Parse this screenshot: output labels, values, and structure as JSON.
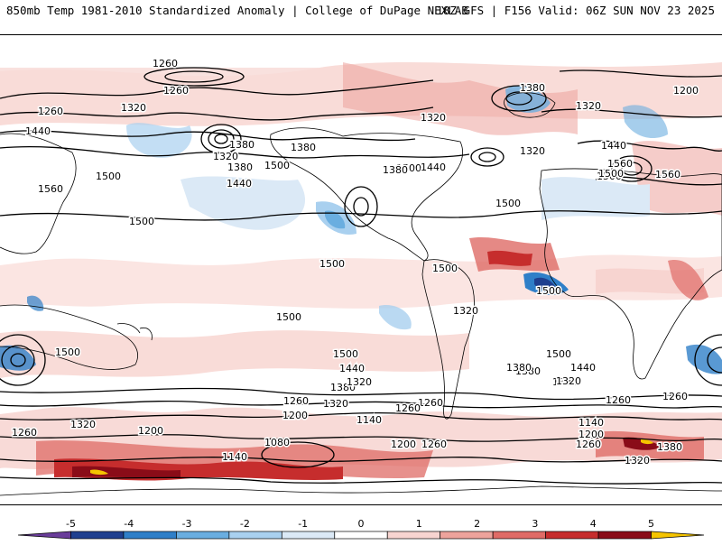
{
  "header": {
    "left": "850mb Temp 1981-2010 Standardized Anomaly | College of DuPage NEXLAB",
    "right": "18Z GFS | F156 Valid: 06Z SUN NOV 23 2025"
  },
  "contour_labels": [
    "1260",
    "1260",
    "1320",
    "1260",
    "1440",
    "1380",
    "1320",
    "1380",
    "1500",
    "1440",
    "1560",
    "1500",
    "1380",
    "1500",
    "1440",
    "1380",
    "1320",
    "1320",
    "1200",
    "1320",
    "1380",
    "1440",
    "1560",
    "1500",
    "1560",
    "1500",
    "1500",
    "1500",
    "1500",
    "1500",
    "1500",
    "1500",
    "1320",
    "1500",
    "1500",
    "1440",
    "1380",
    "1320",
    "1260",
    "1200",
    "1140",
    "1080",
    "1200",
    "1260",
    "1260",
    "1320",
    "1260",
    "1380",
    "1320",
    "1500",
    "1380",
    "1440",
    "1320",
    "1260",
    "1260",
    "1140",
    "1200",
    "1260",
    "1380",
    "1320",
    "1200",
    "1140",
    "1320",
    "1260"
  ],
  "colorbar": {
    "ticks": [
      "-5",
      "-4",
      "-3",
      "-2",
      "-1",
      "0",
      "1",
      "2",
      "3",
      "4",
      "5"
    ],
    "colors": [
      "#6a3d9a",
      "#1f3f8f",
      "#2f7fc8",
      "#6aaee0",
      "#a9d0ef",
      "#dbe9f6",
      "#ffffff",
      "#f7d4d0",
      "#eda39c",
      "#df6b66",
      "#c62d2d",
      "#8a0c18",
      "#f5c400"
    ]
  }
}
